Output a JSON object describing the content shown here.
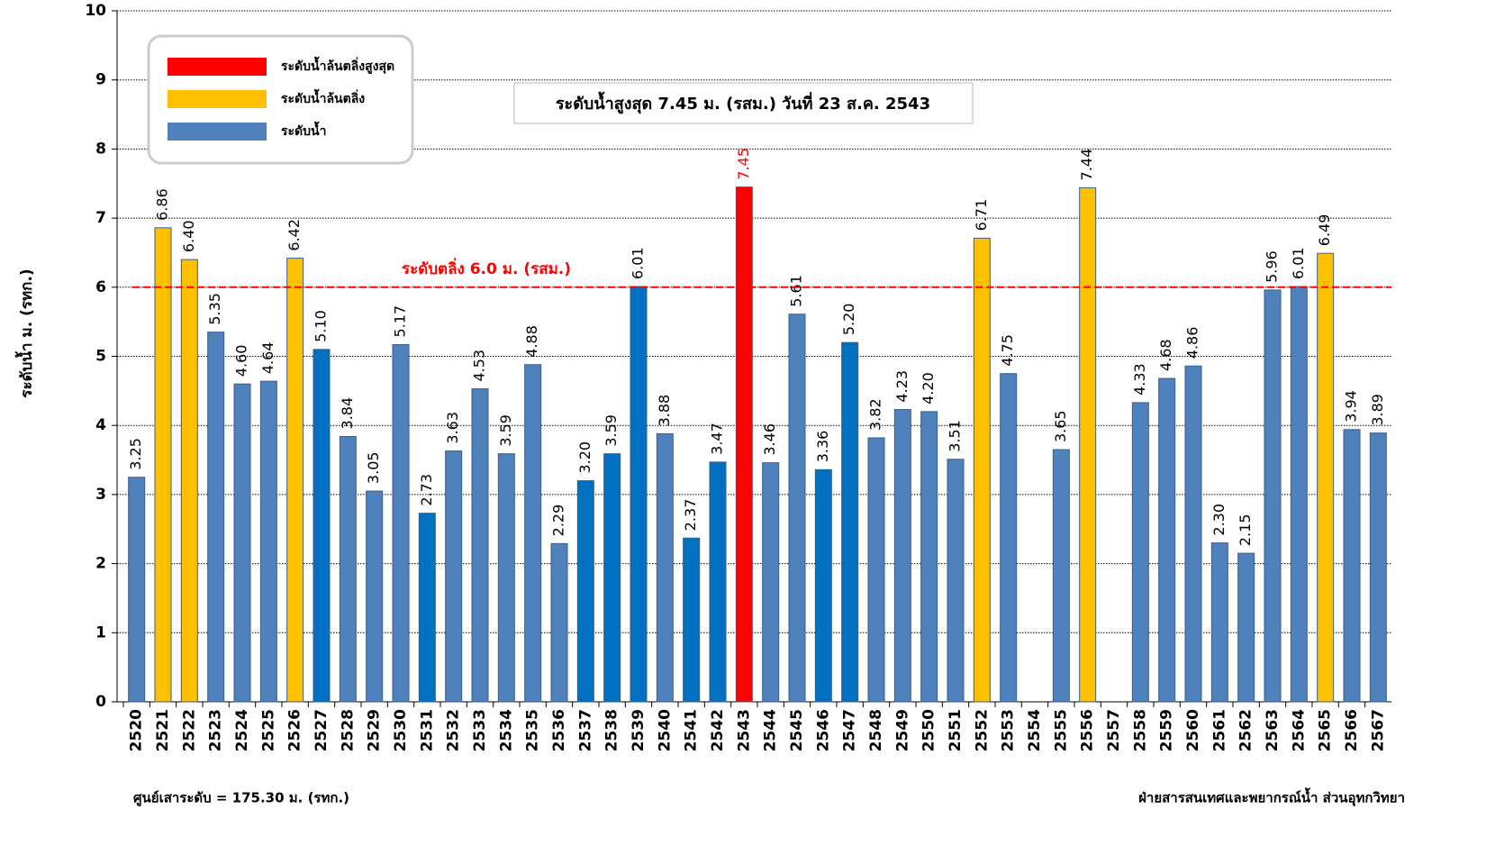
{
  "chart_data": {
    "type": "bar",
    "y_label": "ระดับน้ำ ม. (รทก.)",
    "categories": [
      "2520",
      "2521",
      "2522",
      "2523",
      "2524",
      "2525",
      "2526",
      "2527",
      "2528",
      "2529",
      "2530",
      "2531",
      "2532",
      "2533",
      "2534",
      "2535",
      "2536",
      "2537",
      "2538",
      "2539",
      "2540",
      "2541",
      "2542",
      "2543",
      "2544",
      "2545",
      "2546",
      "2547",
      "2548",
      "2549",
      "2550",
      "2551",
      "2552",
      "2553",
      "2554",
      "2555",
      "2556",
      "2557",
      "2558",
      "2559",
      "2560",
      "2561",
      "2562",
      "2563",
      "2564",
      "2565",
      "2566",
      "2567"
    ],
    "values": [
      3.25,
      6.86,
      6.4,
      5.35,
      4.6,
      4.64,
      6.42,
      5.1,
      3.84,
      3.05,
      5.17,
      2.73,
      3.63,
      4.53,
      3.59,
      4.88,
      2.29,
      3.2,
      3.59,
      6.01,
      3.88,
      2.37,
      3.47,
      7.45,
      3.46,
      5.61,
      3.36,
      5.2,
      3.82,
      4.23,
      4.2,
      3.51,
      6.71,
      4.75,
      null,
      3.65,
      7.44,
      null,
      4.33,
      4.68,
      4.86,
      2.3,
      2.15,
      5.96,
      6.01,
      6.49,
      3.94,
      3.89
    ],
    "value_labels": [
      "3.25",
      "6.86",
      "6.40",
      "5.35",
      "4.60",
      "4.64",
      "6.42",
      "5.10",
      "3.84",
      "3.05",
      "5.17",
      "2.73",
      "3.63",
      "4.53",
      "3.59",
      "4.88",
      "2.29",
      "3.20",
      "3.59",
      "6.01",
      "3.88",
      "2.37",
      "3.47",
      "7.45",
      "3.46",
      "5.61",
      "3.36",
      "5.20",
      "3.82",
      "4.23",
      "4.20",
      "3.51",
      "6.71",
      "4.75",
      null,
      "3.65",
      "7.44",
      null,
      "4.33",
      "4.68",
      "4.86",
      "2.30",
      "2.15",
      "5.96",
      "6.01",
      "6.49",
      "3.94",
      "3.89"
    ],
    "bar_colors": [
      "#4f81bd",
      "#ffc000",
      "#ffc000",
      "#4f81bd",
      "#4f81bd",
      "#4f81bd",
      "#ffc000",
      "#0070c0",
      "#4f81bd",
      "#4f81bd",
      "#4f81bd",
      "#0070c0",
      "#4f81bd",
      "#4f81bd",
      "#4f81bd",
      "#4f81bd",
      "#4f81bd",
      "#0070c0",
      "#0070c0",
      "#0070c0",
      "#4f81bd",
      "#0070c0",
      "#0070c0",
      "#ff0000",
      "#4f81bd",
      "#4f81bd",
      "#0070c0",
      "#0070c0",
      "#4f81bd",
      "#4f81bd",
      "#4f81bd",
      "#4f81bd",
      "#ffc000",
      "#4f81bd",
      "#4f81bd",
      "#4f81bd",
      "#ffc000",
      "#4f81bd",
      "#4f81bd",
      "#4f81bd",
      "#4f81bd",
      "#4f81bd",
      "#4f81bd",
      "#4f81bd",
      "#4f81bd",
      "#ffc000",
      "#4f81bd",
      "#4f81bd"
    ],
    "ylim": [
      0,
      10
    ],
    "yticks": [
      0,
      1,
      2,
      3,
      4,
      5,
      6,
      7,
      8,
      9,
      10
    ],
    "grid": true,
    "legend": [
      {
        "label": "ระดับน้ำล้นตลิ่งสูงสุด",
        "color": "#ff0000"
      },
      {
        "label": "ระดับน้ำล้นตลิ่ง",
        "color": "#ffc000"
      },
      {
        "label": "ระดับน้ำ",
        "color": "#4f81bd"
      }
    ],
    "threshold": {
      "value": 6,
      "label": "ระดับตลิ่ง 6.0 ม. (รสม.)",
      "color": "#ff0000"
    },
    "annotation": "ระดับน้ำสูงสุด 7.45 ม. (รสม.) วันที่ 23 ส.ค. 2543",
    "footer_left": "ศูนย์เสาระดับ = 175.30 ม. (รทก.)",
    "footer_right": "ฝ่ายสารสนเทศและพยากรณ์น้ำ ส่วนอุทกวิทยา"
  }
}
